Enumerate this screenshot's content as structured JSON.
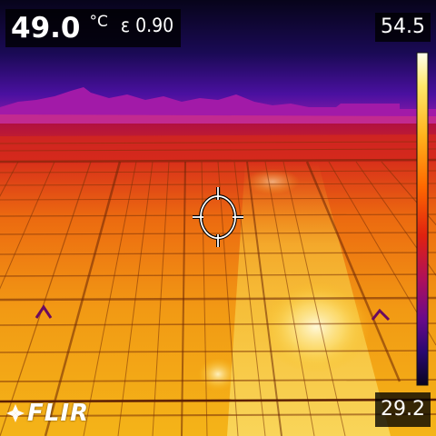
{
  "readout": {
    "temperature": "49.0",
    "unit": "°C",
    "emissivity": "ε 0.90"
  },
  "scale": {
    "max": "54.5",
    "min": "29.2",
    "palette": [
      "#fffff0",
      "#ffe76a",
      "#ffb21c",
      "#ff6a00",
      "#e0220f",
      "#b0105a",
      "#6a0a8a",
      "#2a0870",
      "#0a0420"
    ]
  },
  "brand": {
    "logo_text": "FLIR"
  },
  "colors": {
    "sky_top": "#08041c",
    "sky_mid": "#3a0c80",
    "horizon": "#a018a0",
    "panel_far": "#d02018",
    "panel_mid": "#f07a10",
    "panel_near": "#f5c21a",
    "hotspot": "#fff6c0"
  },
  "icons": [
    "crosshair-icon",
    "flir-logo-icon"
  ]
}
